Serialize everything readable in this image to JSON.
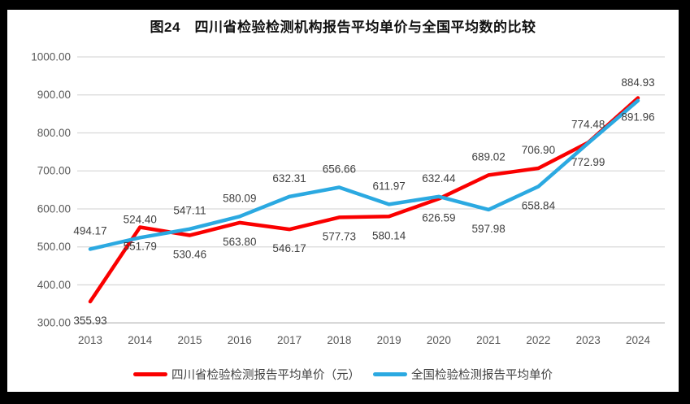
{
  "chart_data": {
    "type": "line",
    "title": "图24　四川省检验检测机构报告平均单价与全国平均数的比较",
    "categories": [
      "2013",
      "2014",
      "2015",
      "2016",
      "2017",
      "2018",
      "2019",
      "2020",
      "2021",
      "2022",
      "2023",
      "2024"
    ],
    "series": [
      {
        "name": "四川省检验检测报告平均单价（元）",
        "color": "#fa0000",
        "values": [
          355.93,
          551.79,
          530.46,
          563.8,
          546.17,
          577.73,
          580.14,
          626.59,
          689.02,
          706.9,
          774.48,
          891.96
        ],
        "label_pos": [
          "below",
          "below",
          "below",
          "below",
          "below",
          "below",
          "below",
          "below",
          "above",
          "above",
          "above",
          "below"
        ]
      },
      {
        "name": "全国检验检测报告平均单价",
        "color": "#2ba9e1",
        "values": [
          494.17,
          524.4,
          547.11,
          580.09,
          632.31,
          656.66,
          611.97,
          632.44,
          597.98,
          658.84,
          772.99,
          884.93
        ],
        "label_pos": [
          "above",
          "above",
          "above",
          "above",
          "above",
          "above",
          "above",
          "above",
          "below",
          "below",
          "below",
          "above"
        ]
      }
    ],
    "ylim": [
      300,
      1000
    ],
    "ytick_step": 100,
    "ytick_labels": [
      "300.00",
      "400.00",
      "500.00",
      "600.00",
      "700.00",
      "800.00",
      "900.00",
      "1000.00"
    ],
    "value_format_decimals": 2,
    "grid": true,
    "legend_position": "bottom",
    "colors": {
      "gridline": "#d9d9d9",
      "axis_line": "#bfbfbf",
      "tick_label": "#595959",
      "data_label": "#3f3f3f",
      "background": "#ffffff",
      "frame": "#000000"
    }
  }
}
